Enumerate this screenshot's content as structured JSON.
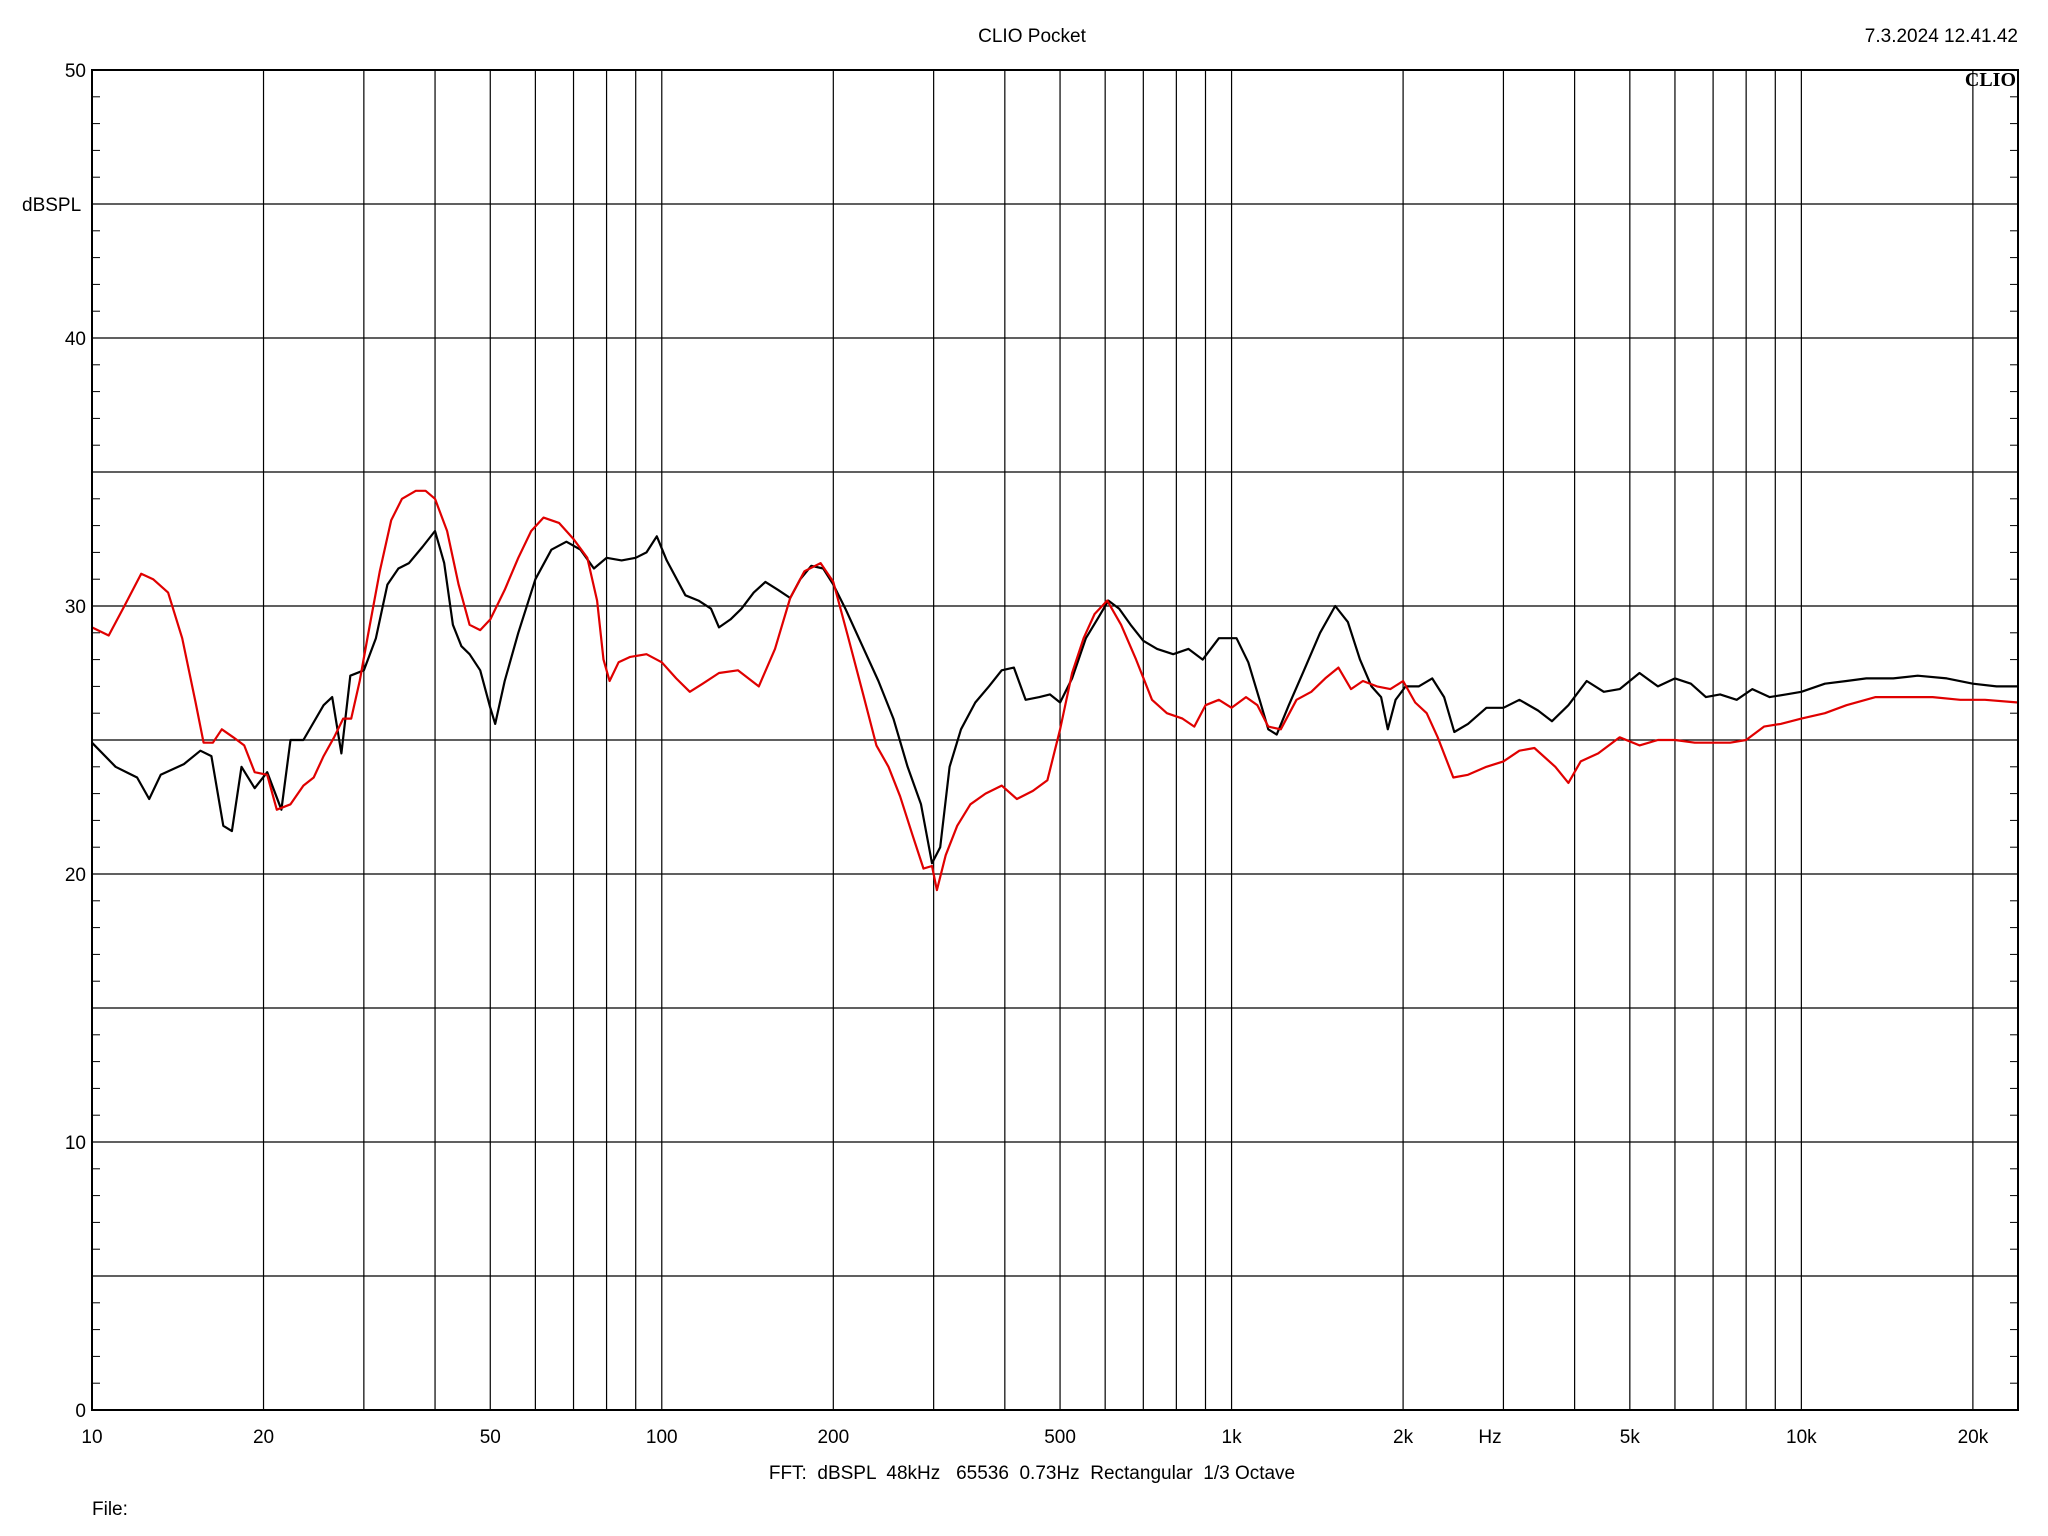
{
  "header": {
    "title": "CLIO Pocket",
    "timestamp": "7.3.2024 12.41.42",
    "logo_text": "CLIO"
  },
  "footer": {
    "settings": "FFT:  dBSPL  48kHz   65536  0.73Hz  Rectangular  1/3 Octave",
    "file_label": "File:"
  },
  "chart_data": {
    "type": "line",
    "title": "CLIO Pocket",
    "xlabel": "Hz",
    "ylabel": "dBSPL",
    "x_scale": "log",
    "xlim": [
      10,
      24000
    ],
    "ylim": [
      0,
      50
    ],
    "grid": true,
    "y_major_ticks": [
      0,
      10,
      20,
      30,
      40,
      50
    ],
    "y_grid_lines": [
      0,
      5,
      10,
      15,
      20,
      25,
      30,
      35,
      40,
      45,
      50
    ],
    "x_tick_labels": [
      {
        "value": 10,
        "label": "10"
      },
      {
        "value": 20,
        "label": "20"
      },
      {
        "value": 50,
        "label": "50"
      },
      {
        "value": 100,
        "label": "100"
      },
      {
        "value": 200,
        "label": "200"
      },
      {
        "value": 500,
        "label": "500"
      },
      {
        "value": 1000,
        "label": "1k"
      },
      {
        "value": 2000,
        "label": "2k"
      },
      {
        "value": 5000,
        "label": "5k"
      },
      {
        "value": 10000,
        "label": "10k"
      },
      {
        "value": 20000,
        "label": "20k"
      }
    ],
    "x_grid_lines": [
      20,
      30,
      40,
      50,
      60,
      70,
      80,
      90,
      100,
      200,
      300,
      400,
      500,
      600,
      700,
      800,
      900,
      1000,
      2000,
      3000,
      4000,
      5000,
      6000,
      7000,
      8000,
      9000,
      10000,
      20000
    ],
    "series": [
      {
        "color": "#000000",
        "points": [
          [
            10,
            24.9
          ],
          [
            11,
            24.0
          ],
          [
            12,
            23.6
          ],
          [
            12.6,
            22.8
          ],
          [
            13.2,
            23.7
          ],
          [
            14.5,
            24.1
          ],
          [
            15.5,
            24.6
          ],
          [
            16.2,
            24.4
          ],
          [
            17,
            21.8
          ],
          [
            17.6,
            21.6
          ],
          [
            18.3,
            24.0
          ],
          [
            19.3,
            23.2
          ],
          [
            20.3,
            23.8
          ],
          [
            21.5,
            22.4
          ],
          [
            22.3,
            25.0
          ],
          [
            23.5,
            25.0
          ],
          [
            25.5,
            26.3
          ],
          [
            26.4,
            26.6
          ],
          [
            27.4,
            24.5
          ],
          [
            28.4,
            27.4
          ],
          [
            30,
            27.6
          ],
          [
            31.5,
            28.8
          ],
          [
            33,
            30.8
          ],
          [
            34.5,
            31.4
          ],
          [
            36,
            31.6
          ],
          [
            38,
            32.2
          ],
          [
            40,
            32.8
          ],
          [
            41.5,
            31.6
          ],
          [
            43,
            29.3
          ],
          [
            44.5,
            28.5
          ],
          [
            46,
            28.2
          ],
          [
            48,
            27.6
          ],
          [
            50,
            26.2
          ],
          [
            51,
            25.6
          ],
          [
            53,
            27.2
          ],
          [
            56,
            29.0
          ],
          [
            60,
            31.0
          ],
          [
            64,
            32.1
          ],
          [
            68,
            32.4
          ],
          [
            72,
            32.1
          ],
          [
            76,
            31.4
          ],
          [
            80,
            31.8
          ],
          [
            85,
            31.7
          ],
          [
            90,
            31.8
          ],
          [
            94,
            32.0
          ],
          [
            98,
            32.6
          ],
          [
            102,
            31.7
          ],
          [
            110,
            30.4
          ],
          [
            116,
            30.2
          ],
          [
            122,
            29.9
          ],
          [
            126,
            29.2
          ],
          [
            132,
            29.5
          ],
          [
            138,
            29.9
          ],
          [
            145,
            30.5
          ],
          [
            152,
            30.9
          ],
          [
            160,
            30.6
          ],
          [
            168,
            30.3
          ],
          [
            175,
            31.0
          ],
          [
            183,
            31.5
          ],
          [
            192,
            31.4
          ],
          [
            200,
            30.8
          ],
          [
            210,
            29.9
          ],
          [
            225,
            28.5
          ],
          [
            240,
            27.2
          ],
          [
            255,
            25.8
          ],
          [
            270,
            24.0
          ],
          [
            285,
            22.6
          ],
          [
            298,
            20.4
          ],
          [
            308,
            21.0
          ],
          [
            320,
            24.0
          ],
          [
            335,
            25.4
          ],
          [
            355,
            26.4
          ],
          [
            375,
            27.0
          ],
          [
            395,
            27.6
          ],
          [
            415,
            27.7
          ],
          [
            435,
            26.5
          ],
          [
            460,
            26.6
          ],
          [
            480,
            26.7
          ],
          [
            500,
            26.4
          ],
          [
            525,
            27.3
          ],
          [
            555,
            28.8
          ],
          [
            585,
            29.6
          ],
          [
            608,
            30.2
          ],
          [
            635,
            29.9
          ],
          [
            665,
            29.3
          ],
          [
            700,
            28.7
          ],
          [
            740,
            28.4
          ],
          [
            790,
            28.2
          ],
          [
            840,
            28.4
          ],
          [
            890,
            28.0
          ],
          [
            950,
            28.8
          ],
          [
            1020,
            28.8
          ],
          [
            1070,
            27.9
          ],
          [
            1120,
            26.5
          ],
          [
            1160,
            25.4
          ],
          [
            1200,
            25.2
          ],
          [
            1260,
            26.3
          ],
          [
            1340,
            27.6
          ],
          [
            1430,
            29.0
          ],
          [
            1520,
            30.0
          ],
          [
            1600,
            29.4
          ],
          [
            1680,
            28.0
          ],
          [
            1760,
            27.0
          ],
          [
            1830,
            26.6
          ],
          [
            1880,
            25.4
          ],
          [
            1940,
            26.5
          ],
          [
            2020,
            27.0
          ],
          [
            2130,
            27.0
          ],
          [
            2250,
            27.3
          ],
          [
            2360,
            26.6
          ],
          [
            2460,
            25.3
          ],
          [
            2600,
            25.6
          ],
          [
            2800,
            26.2
          ],
          [
            3000,
            26.2
          ],
          [
            3200,
            26.5
          ],
          [
            3450,
            26.1
          ],
          [
            3650,
            25.7
          ],
          [
            3900,
            26.3
          ],
          [
            4200,
            27.2
          ],
          [
            4500,
            26.8
          ],
          [
            4800,
            26.9
          ],
          [
            5200,
            27.5
          ],
          [
            5600,
            27.0
          ],
          [
            6000,
            27.3
          ],
          [
            6400,
            27.1
          ],
          [
            6800,
            26.6
          ],
          [
            7200,
            26.7
          ],
          [
            7700,
            26.5
          ],
          [
            8200,
            26.9
          ],
          [
            8800,
            26.6
          ],
          [
            9400,
            26.7
          ],
          [
            10000,
            26.8
          ],
          [
            11000,
            27.1
          ],
          [
            12000,
            27.2
          ],
          [
            13000,
            27.3
          ],
          [
            14500,
            27.3
          ],
          [
            16000,
            27.4
          ],
          [
            18000,
            27.3
          ],
          [
            20000,
            27.1
          ],
          [
            22000,
            27.0
          ],
          [
            24000,
            27.0
          ]
        ]
      },
      {
        "color": "#e00000",
        "points": [
          [
            10,
            29.2
          ],
          [
            10.7,
            28.9
          ],
          [
            11.4,
            30.0
          ],
          [
            12.2,
            31.2
          ],
          [
            12.8,
            31.0
          ],
          [
            13.6,
            30.5
          ],
          [
            14.4,
            28.8
          ],
          [
            15.2,
            26.4
          ],
          [
            15.7,
            24.9
          ],
          [
            16.3,
            24.9
          ],
          [
            16.9,
            25.4
          ],
          [
            17.7,
            25.1
          ],
          [
            18.5,
            24.8
          ],
          [
            19.3,
            23.8
          ],
          [
            20.3,
            23.7
          ],
          [
            21.1,
            22.4
          ],
          [
            22.3,
            22.6
          ],
          [
            23.5,
            23.3
          ],
          [
            24.5,
            23.6
          ],
          [
            25.5,
            24.4
          ],
          [
            26.6,
            25.1
          ],
          [
            27.6,
            25.8
          ],
          [
            28.5,
            25.8
          ],
          [
            29.5,
            27.2
          ],
          [
            30.5,
            28.9
          ],
          [
            32,
            31.3
          ],
          [
            33.5,
            33.2
          ],
          [
            35,
            34.0
          ],
          [
            37,
            34.3
          ],
          [
            38.5,
            34.3
          ],
          [
            40,
            34.0
          ],
          [
            42,
            32.8
          ],
          [
            44,
            30.8
          ],
          [
            46,
            29.3
          ],
          [
            48,
            29.1
          ],
          [
            50,
            29.5
          ],
          [
            53,
            30.6
          ],
          [
            56,
            31.8
          ],
          [
            59,
            32.8
          ],
          [
            62,
            33.3
          ],
          [
            66,
            33.1
          ],
          [
            70,
            32.5
          ],
          [
            74,
            31.8
          ],
          [
            77,
            30.2
          ],
          [
            79,
            28.0
          ],
          [
            81,
            27.2
          ],
          [
            84,
            27.9
          ],
          [
            88,
            28.1
          ],
          [
            94,
            28.2
          ],
          [
            100,
            27.9
          ],
          [
            106,
            27.3
          ],
          [
            112,
            26.8
          ],
          [
            118,
            27.1
          ],
          [
            126,
            27.5
          ],
          [
            136,
            27.6
          ],
          [
            148,
            27.0
          ],
          [
            158,
            28.4
          ],
          [
            168,
            30.3
          ],
          [
            178,
            31.3
          ],
          [
            190,
            31.6
          ],
          [
            200,
            30.9
          ],
          [
            212,
            28.9
          ],
          [
            225,
            26.8
          ],
          [
            238,
            24.8
          ],
          [
            250,
            24.0
          ],
          [
            262,
            22.9
          ],
          [
            275,
            21.5
          ],
          [
            288,
            20.2
          ],
          [
            298,
            20.3
          ],
          [
            304,
            19.4
          ],
          [
            315,
            20.7
          ],
          [
            330,
            21.8
          ],
          [
            348,
            22.6
          ],
          [
            370,
            23.0
          ],
          [
            395,
            23.3
          ],
          [
            420,
            22.8
          ],
          [
            448,
            23.1
          ],
          [
            475,
            23.5
          ],
          [
            500,
            25.4
          ],
          [
            525,
            27.5
          ],
          [
            550,
            28.8
          ],
          [
            575,
            29.7
          ],
          [
            605,
            30.2
          ],
          [
            640,
            29.3
          ],
          [
            680,
            28.0
          ],
          [
            725,
            26.5
          ],
          [
            770,
            26.0
          ],
          [
            820,
            25.8
          ],
          [
            860,
            25.5
          ],
          [
            900,
            26.3
          ],
          [
            950,
            26.5
          ],
          [
            1000,
            26.2
          ],
          [
            1060,
            26.6
          ],
          [
            1110,
            26.3
          ],
          [
            1160,
            25.5
          ],
          [
            1220,
            25.4
          ],
          [
            1300,
            26.5
          ],
          [
            1380,
            26.8
          ],
          [
            1460,
            27.3
          ],
          [
            1540,
            27.7
          ],
          [
            1620,
            26.9
          ],
          [
            1700,
            27.2
          ],
          [
            1800,
            27.0
          ],
          [
            1900,
            26.9
          ],
          [
            2000,
            27.2
          ],
          [
            2100,
            26.4
          ],
          [
            2200,
            26.0
          ],
          [
            2300,
            25.1
          ],
          [
            2450,
            23.6
          ],
          [
            2600,
            23.7
          ],
          [
            2800,
            24.0
          ],
          [
            3000,
            24.2
          ],
          [
            3200,
            24.6
          ],
          [
            3400,
            24.7
          ],
          [
            3700,
            24.0
          ],
          [
            3900,
            23.4
          ],
          [
            4100,
            24.2
          ],
          [
            4400,
            24.5
          ],
          [
            4800,
            25.1
          ],
          [
            5200,
            24.8
          ],
          [
            5600,
            25.0
          ],
          [
            6000,
            25.0
          ],
          [
            6500,
            24.9
          ],
          [
            7000,
            24.9
          ],
          [
            7500,
            24.9
          ],
          [
            8000,
            25.0
          ],
          [
            8600,
            25.5
          ],
          [
            9200,
            25.6
          ],
          [
            10000,
            25.8
          ],
          [
            11000,
            26.0
          ],
          [
            12000,
            26.3
          ],
          [
            13500,
            26.6
          ],
          [
            15000,
            26.6
          ],
          [
            17000,
            26.6
          ],
          [
            19000,
            26.5
          ],
          [
            21000,
            26.5
          ],
          [
            24000,
            26.4
          ]
        ]
      }
    ]
  }
}
